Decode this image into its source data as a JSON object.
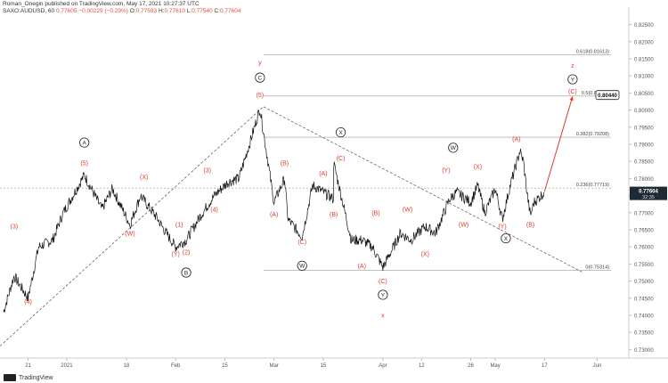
{
  "header": {
    "line1": "Roman_Onegin published on TradingView.com, May 17, 2021 10:27:37 UTC",
    "symbol": "SAXO:AUDUSD, 60",
    "last": "0.77605",
    "change": "−0.00229 (−0.29%)",
    "o_label": "O:",
    "o": "0.77593",
    "h_label": "H:",
    "h": "0.77610",
    "l_label": "L:",
    "l": "0.77540",
    "c_label": "C:",
    "c": "0.77604"
  },
  "footer": {
    "brand": "TradingView"
  },
  "colors": {
    "wave": "#e03b2e",
    "price": "#111111",
    "axis_text": "#555555",
    "fib": "#9a9a9a",
    "price_badge": "#1e2a36",
    "projection": "#e03b2e"
  },
  "chart_data": {
    "type": "line",
    "x_axis_ticks": [
      "21",
      "2021",
      "18",
      "Feb",
      "15",
      "Mar",
      "15",
      "Apr",
      "12",
      "26",
      "May",
      "17",
      "Jun"
    ],
    "y_axis_ticks": [
      "0.82500",
      "0.82000",
      "0.81500",
      "0.81000",
      "0.80500",
      "0.80000",
      "0.79500",
      "0.79000",
      "0.78500",
      "0.78000",
      "0.77500",
      "0.77000",
      "0.76500",
      "0.76000",
      "0.75500",
      "0.75000",
      "0.74500",
      "0.74000",
      "0.73500",
      "0.73000"
    ],
    "ylim": [
      0.7275,
      0.8275
    ],
    "x_range_days": [
      "2020-12-13",
      "2021-06-10"
    ],
    "price_series": [
      {
        "date": "2020-12-14",
        "price": 0.741
      },
      {
        "date": "2020-12-17",
        "price": 0.7515
      },
      {
        "date": "2020-12-21",
        "price": 0.745
      },
      {
        "date": "2020-12-24",
        "price": 0.76
      },
      {
        "date": "2020-12-28",
        "price": 0.762
      },
      {
        "date": "2020-12-31",
        "price": 0.77
      },
      {
        "date": "2021-01-06",
        "price": 0.781
      },
      {
        "date": "2021-01-11",
        "price": 0.771
      },
      {
        "date": "2021-01-14",
        "price": 0.777
      },
      {
        "date": "2021-01-19",
        "price": 0.7665
      },
      {
        "date": "2021-01-22",
        "price": 0.775
      },
      {
        "date": "2021-01-27",
        "price": 0.768
      },
      {
        "date": "2021-01-29",
        "price": 0.7645
      },
      {
        "date": "2021-02-01",
        "price": 0.76
      },
      {
        "date": "2021-02-04",
        "price": 0.762
      },
      {
        "date": "2021-02-08",
        "price": 0.769
      },
      {
        "date": "2021-02-12",
        "price": 0.775
      },
      {
        "date": "2021-02-16",
        "price": 0.779
      },
      {
        "date": "2021-02-19",
        "price": 0.78
      },
      {
        "date": "2021-02-22",
        "price": 0.79
      },
      {
        "date": "2021-02-25",
        "price": 0.8005
      },
      {
        "date": "2021-03-01",
        "price": 0.773
      },
      {
        "date": "2021-03-04",
        "price": 0.78
      },
      {
        "date": "2021-03-05",
        "price": 0.768
      },
      {
        "date": "2021-03-09",
        "price": 0.763
      },
      {
        "date": "2021-03-12",
        "price": 0.778
      },
      {
        "date": "2021-03-18",
        "price": 0.774
      },
      {
        "date": "2021-03-18",
        "price": 0.7845
      },
      {
        "date": "2021-03-23",
        "price": 0.762
      },
      {
        "date": "2021-03-26",
        "price": 0.762
      },
      {
        "date": "2021-03-29",
        "price": 0.76
      },
      {
        "date": "2021-04-01",
        "price": 0.754
      },
      {
        "date": "2021-04-06",
        "price": 0.764
      },
      {
        "date": "2021-04-09",
        "price": 0.762
      },
      {
        "date": "2021-04-13",
        "price": 0.766
      },
      {
        "date": "2021-04-16",
        "price": 0.764
      },
      {
        "date": "2021-04-20",
        "price": 0.774
      },
      {
        "date": "2021-04-22",
        "price": 0.776
      },
      {
        "date": "2021-04-26",
        "price": 0.773
      },
      {
        "date": "2021-04-28",
        "price": 0.778
      },
      {
        "date": "2021-04-30",
        "price": 0.77
      },
      {
        "date": "2021-05-03",
        "price": 0.777
      },
      {
        "date": "2021-05-05",
        "price": 0.768
      },
      {
        "date": "2021-05-07",
        "price": 0.777
      },
      {
        "date": "2021-05-10",
        "price": 0.788
      },
      {
        "date": "2021-05-11",
        "price": 0.785
      },
      {
        "date": "2021-05-12",
        "price": 0.776
      },
      {
        "date": "2021-05-13",
        "price": 0.769
      },
      {
        "date": "2021-05-14",
        "price": 0.773
      },
      {
        "date": "2021-05-17",
        "price": 0.776
      }
    ],
    "current_price_badge": {
      "price": "0.77604",
      "time": "32:35"
    },
    "projection_target_badge": "0.80440",
    "fib_levels": [
      {
        "label": "0.618(0.81613)",
        "price": 0.81613
      },
      {
        "label": "0.5(0.80410)",
        "price": 0.8041
      },
      {
        "label": "0.382(0.79208)",
        "price": 0.79208
      },
      {
        "label": "0.236(0.77719)",
        "price": 0.77719
      },
      {
        "label": "0(0.75314)",
        "price": 0.75314
      }
    ],
    "wave_labels": [
      {
        "text": "(4)",
        "date": "2020-12-21",
        "price": 0.744,
        "style": "plain"
      },
      {
        "text": "(3)",
        "date": "2020-12-17",
        "price": 0.766,
        "style": "plain"
      },
      {
        "text": "(5)",
        "date": "2021-01-06",
        "price": 0.7845,
        "style": "plain"
      },
      {
        "text": "A",
        "date": "2021-01-06",
        "price": 0.7905,
        "style": "circle"
      },
      {
        "text": "(W)",
        "date": "2021-01-19",
        "price": 0.764,
        "style": "plain"
      },
      {
        "text": "(X)",
        "date": "2021-01-23",
        "price": 0.7805,
        "style": "plain"
      },
      {
        "text": "(Y)",
        "date": "2021-02-01",
        "price": 0.758,
        "style": "plain"
      },
      {
        "text": "(1)",
        "date": "2021-02-02",
        "price": 0.7665,
        "style": "plain"
      },
      {
        "text": "(2)",
        "date": "2021-02-04",
        "price": 0.7585,
        "style": "plain"
      },
      {
        "text": "B",
        "date": "2021-02-04",
        "price": 0.7525,
        "style": "circle"
      },
      {
        "text": "(3)",
        "date": "2021-02-10",
        "price": 0.7825,
        "style": "plain"
      },
      {
        "text": "(4)",
        "date": "2021-02-12",
        "price": 0.771,
        "style": "plain"
      },
      {
        "text": "(5)",
        "date": "2021-02-25",
        "price": 0.8045,
        "style": "plain"
      },
      {
        "text": "C",
        "date": "2021-02-25",
        "price": 0.8095,
        "style": "circle"
      },
      {
        "text": "y",
        "date": "2021-02-25",
        "price": 0.814,
        "style": "plain"
      },
      {
        "text": "(A)",
        "date": "2021-03-01",
        "price": 0.7695,
        "style": "plain"
      },
      {
        "text": "(B)",
        "date": "2021-03-04",
        "price": 0.7845,
        "style": "plain"
      },
      {
        "text": "(C)",
        "date": "2021-03-09",
        "price": 0.7615,
        "style": "plain"
      },
      {
        "text": "W",
        "date": "2021-03-09",
        "price": 0.7545,
        "style": "circle"
      },
      {
        "text": "(A)",
        "date": "2021-03-15",
        "price": 0.7815,
        "style": "plain"
      },
      {
        "text": "(B)",
        "date": "2021-03-18",
        "price": 0.7695,
        "style": "plain"
      },
      {
        "text": "(C)",
        "date": "2021-03-20",
        "price": 0.786,
        "style": "plain"
      },
      {
        "text": "X",
        "date": "2021-03-20",
        "price": 0.7935,
        "style": "circle"
      },
      {
        "text": "(A)",
        "date": "2021-03-26",
        "price": 0.7545,
        "style": "plain"
      },
      {
        "text": "(B)",
        "date": "2021-03-30",
        "price": 0.77,
        "style": "plain"
      },
      {
        "text": "(C)",
        "date": "2021-04-01",
        "price": 0.75,
        "style": "plain"
      },
      {
        "text": "Y",
        "date": "2021-04-01",
        "price": 0.746,
        "style": "circle"
      },
      {
        "text": "x",
        "date": "2021-04-01",
        "price": 0.74,
        "style": "plain"
      },
      {
        "text": "(W)",
        "date": "2021-04-08",
        "price": 0.771,
        "style": "plain"
      },
      {
        "text": "(X)",
        "date": "2021-04-13",
        "price": 0.758,
        "style": "plain"
      },
      {
        "text": "(Y)",
        "date": "2021-04-19",
        "price": 0.7825,
        "style": "plain"
      },
      {
        "text": "W",
        "date": "2021-04-21",
        "price": 0.789,
        "style": "circle"
      },
      {
        "text": "(W)",
        "date": "2021-04-24",
        "price": 0.7665,
        "style": "plain"
      },
      {
        "text": "(X)",
        "date": "2021-04-28",
        "price": 0.7835,
        "style": "plain"
      },
      {
        "text": "(Y)",
        "date": "2021-05-05",
        "price": 0.766,
        "style": "plain"
      },
      {
        "text": "X",
        "date": "2021-05-06",
        "price": 0.7625,
        "style": "circle"
      },
      {
        "text": "(A)",
        "date": "2021-05-09",
        "price": 0.7915,
        "style": "plain"
      },
      {
        "text": "(B)",
        "date": "2021-05-13",
        "price": 0.7665,
        "style": "plain"
      },
      {
        "text": "(C)",
        "date": "2021-05-25",
        "price": 0.8055,
        "style": "plain"
      },
      {
        "text": "Y",
        "date": "2021-05-25",
        "price": 0.809,
        "style": "circle"
      },
      {
        "text": "z",
        "date": "2021-05-25",
        "price": 0.813,
        "style": "plain"
      }
    ],
    "trendlines": [
      {
        "from": {
          "date": "2020-12-13",
          "price": 0.731
        },
        "to": {
          "date": "2021-02-26",
          "price": 0.801
        }
      },
      {
        "from": {
          "date": "2021-02-26",
          "price": 0.801
        },
        "to": {
          "date": "2021-05-28",
          "price": 0.7525
        }
      }
    ],
    "projection": {
      "from": {
        "date": "2021-05-17",
        "price": 0.7762
      },
      "to": {
        "date": "2021-05-25",
        "price": 0.804
      }
    }
  }
}
